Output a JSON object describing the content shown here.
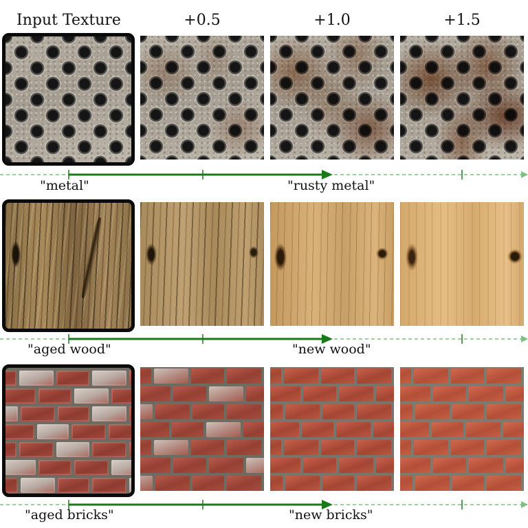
{
  "headers": {
    "input": "Input Texture",
    "step1": "+0.5",
    "step2": "+1.0",
    "step3": "+1.5"
  },
  "rows": [
    {
      "source_label": "\"metal\"",
      "target_label": "\"rusty metal\""
    },
    {
      "source_label": "\"aged wood\"",
      "target_label": "\"new wood\""
    },
    {
      "source_label": "\"aged bricks\"",
      "target_label": "\"new bricks\""
    }
  ],
  "colors": {
    "arrow": "#1a7a1a",
    "dashed_axis": "#7ec07e",
    "input_frame": "#0a0a0a"
  }
}
